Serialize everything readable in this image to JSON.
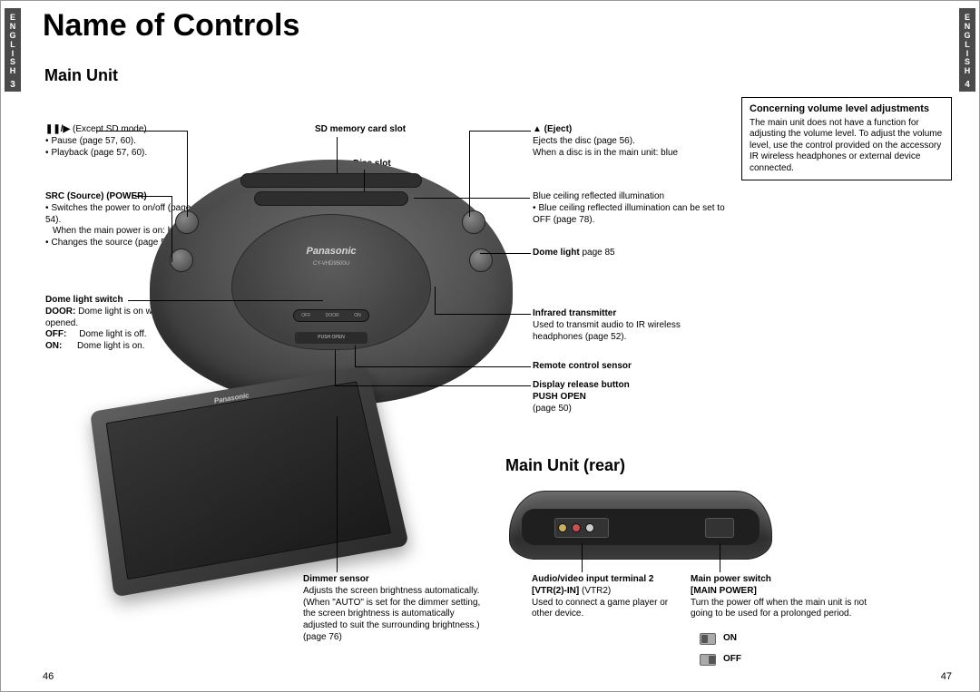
{
  "side_left": {
    "lang": "ENGLISH",
    "num": "3"
  },
  "side_right": {
    "lang": "ENGLISH",
    "num": "4"
  },
  "title": "Name of Controls",
  "subtitle": "Main Unit",
  "subtitle_rear": "Main Unit (rear)",
  "page_left": "46",
  "page_right": "47",
  "vol": {
    "title": "Concerning volume level adjustments",
    "body": "The main unit does not have a function for adjusting the volume level. To adjust the volume level, use the control provided on the accessory IR wireless headphones or external device connected."
  },
  "c": {
    "pauseplay_hdr": "❚❚/▶",
    "pauseplay_tail": "(Except SD mode)",
    "pause": "Pause (page 57, 60).",
    "playback": "Playback (page 57, 60).",
    "src_hdr": "SRC (Source) (POWER)",
    "src1": "Switches the power to on/off (page 54).",
    "src2": "When the main power is on: blue",
    "src3": "Changes the source (page 54).",
    "dls_hdr": "Dome light switch",
    "dls_door_k": "DOOR:",
    "dls_door_v": "Dome light is on when door is opened.",
    "dls_off_k": "OFF:",
    "dls_off_v": "Dome light is off.",
    "dls_on_k": "ON:",
    "dls_on_v": "Dome light is on.",
    "sd_hdr": "SD memory card slot",
    "disc_hdr": "Disc slot",
    "eject_hdr": "▲ (Eject)",
    "eject1": "Ejects the disc (page 56).",
    "eject2": "When a disc is in the main unit: blue",
    "blue1": "Blue ceiling reflected illumination",
    "blue2": "Blue ceiling reflected illumination  can be set to OFF (page 78).",
    "dome_hdr": "Dome light",
    "dome_tail": "page 85",
    "ir_hdr": "Infrared transmitter",
    "ir_body": "Used to transmit audio to IR wireless headphones (page 52).",
    "rcs_hdr": "Remote control sensor",
    "drb_hdr": "Display release button",
    "drb2": "PUSH OPEN",
    "drb_tail": "(page 50)",
    "dimmer_hdr": "Dimmer sensor",
    "dimmer_body": "Adjusts the screen brightness automatically.",
    "dimmer_body2": "(When \"AUTO\" is set for the dimmer setting, the screen brightness is automatically adjusted to suit the surrounding brightness.)",
    "dimmer_tail": "(page 76)",
    "av_hdr": "Audio/video input terminal 2",
    "av_hdr2": "[VTR(2)-IN]",
    "av_tail": "(VTR2)",
    "av_body": "Used to connect a game player or other device.",
    "mps_hdr": "Main power switch",
    "mps_hdr2": "[MAIN POWER]",
    "mps_body": "Turn the power off when the main unit is not going to be used for a prolonged period.",
    "on": "ON",
    "off": "OFF"
  },
  "device": {
    "brand": "Panasonic",
    "model": "CY-VHD9500U",
    "sw_off": "OFF",
    "sw_door": "DOOR",
    "sw_on": "ON",
    "pushopen": "PUSH OPEN"
  },
  "colors": {
    "tab_bg": "#4a4a4a"
  }
}
